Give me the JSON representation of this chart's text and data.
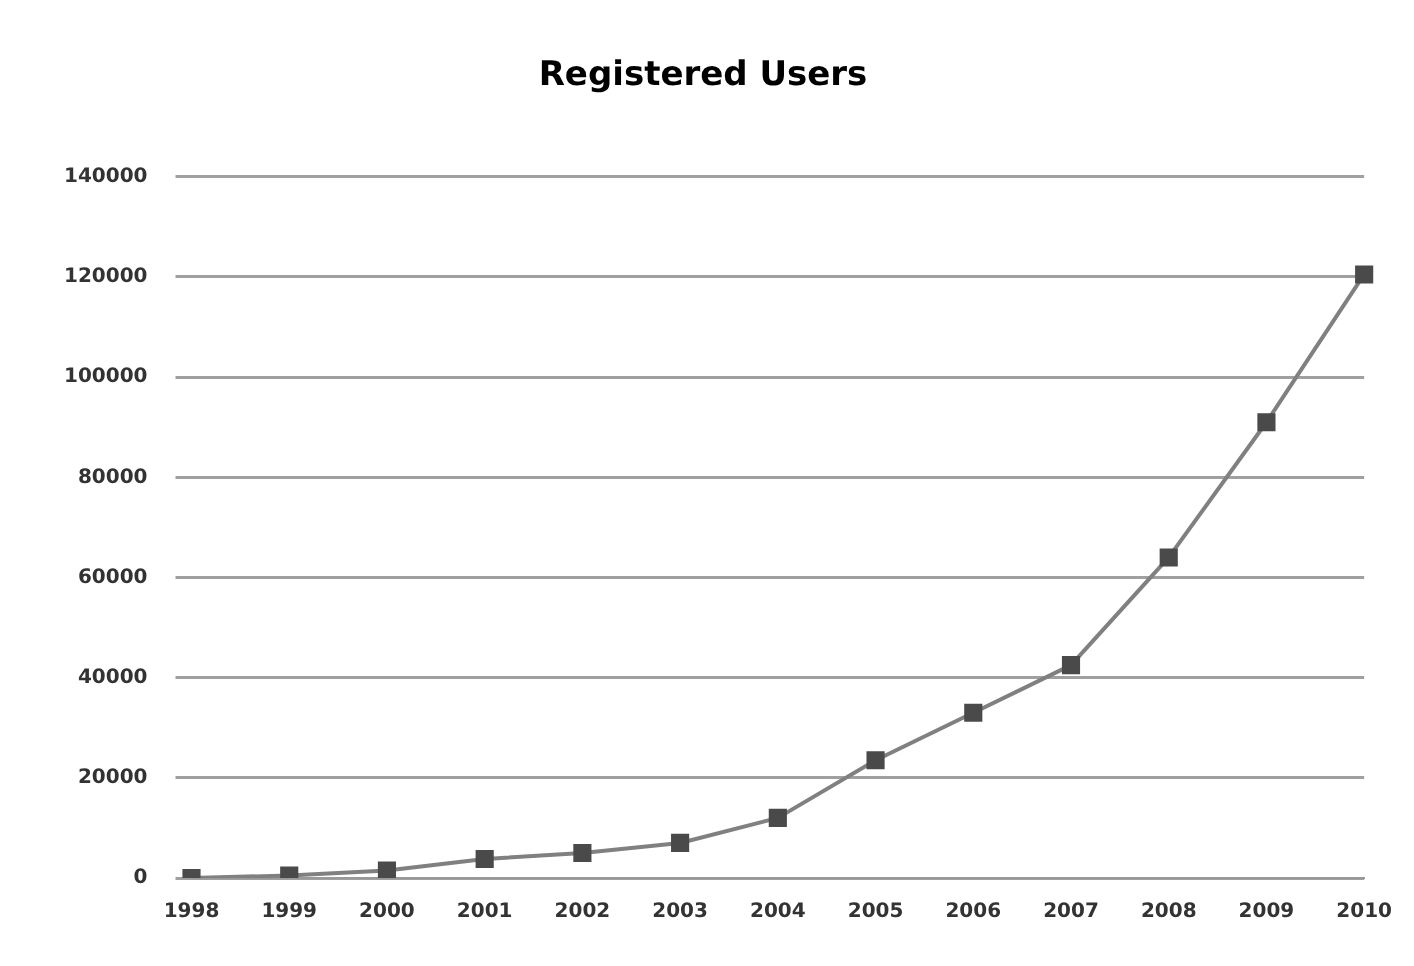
{
  "chart_data": {
    "type": "line",
    "title": "Registered Users",
    "categories": [
      "1998",
      "1999",
      "2000",
      "2001",
      "2002",
      "2003",
      "2004",
      "2005",
      "2006",
      "2007",
      "2008",
      "2009",
      "2010"
    ],
    "series": [
      {
        "color": "#808080",
        "values": [
          0,
          500,
          1500,
          3800,
          5000,
          7000,
          12000,
          23500,
          33000,
          42500,
          64000,
          91000,
          120500
        ]
      }
    ],
    "ylim": [
      0,
      140000
    ],
    "yticks": [
      0,
      20000,
      40000,
      60000,
      80000,
      100000,
      120000,
      140000
    ],
    "grid": "y",
    "legend": false,
    "marker": "square",
    "line_style": "solid"
  }
}
